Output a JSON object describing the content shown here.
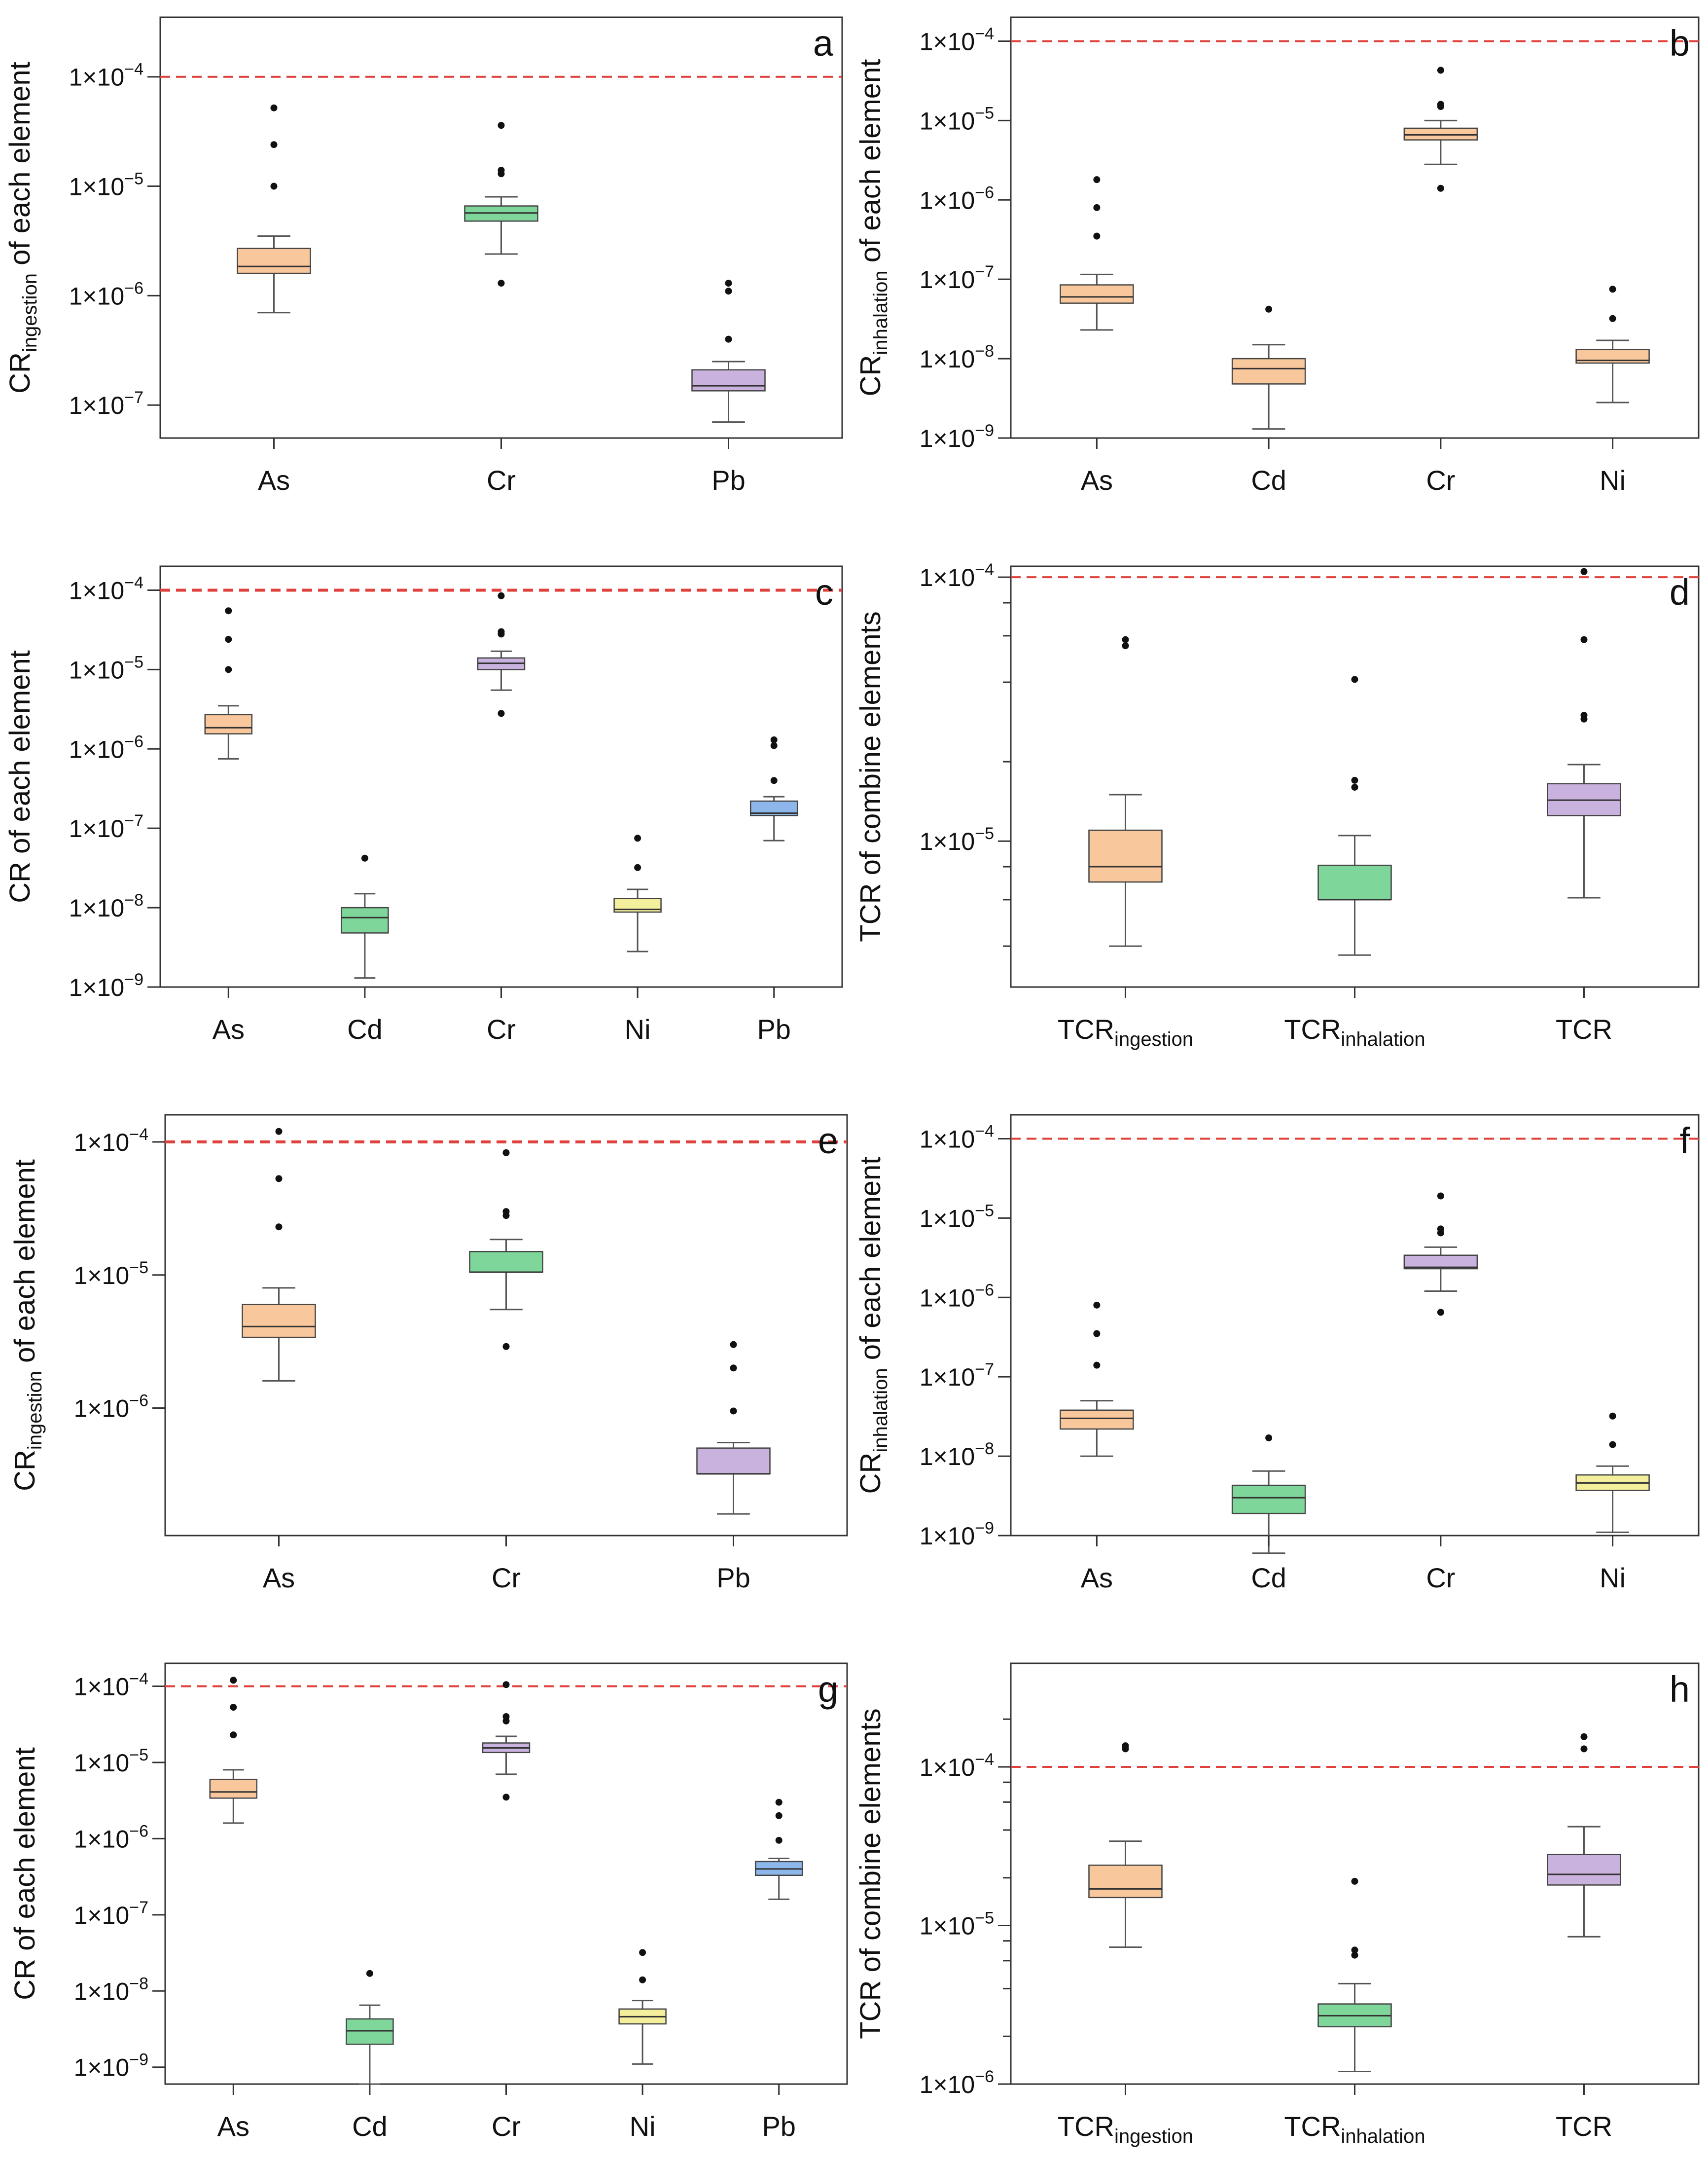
{
  "figure": {
    "panels": [
      "a",
      "b",
      "c",
      "d",
      "e",
      "f",
      "g",
      "h"
    ]
  },
  "colors": {
    "orange": "#F9C79C",
    "green": "#7FD69A",
    "purple": "#C9B3DE",
    "yellow": "#F4EF9C",
    "blue": "#8DB6EA",
    "threshold": "#E0413B"
  },
  "chart_data": [
    {
      "id": "a",
      "type": "boxplot",
      "scale": "log",
      "ylabel": {
        "main": "CR",
        "sub": "ingestion",
        "rest": " of each element"
      },
      "ylim": [
        5e-08,
        0.00035
      ],
      "yticks": [
        {
          "value": 1e-07,
          "label": "1×10",
          "exp": "−7"
        },
        {
          "value": 1e-06,
          "label": "1×10",
          "exp": "−6"
        },
        {
          "value": 1e-05,
          "label": "1×10",
          "exp": "−5"
        },
        {
          "value": 0.0001,
          "label": "1×10",
          "exp": "−4"
        }
      ],
      "threshold": 0.0001,
      "categories": [
        {
          "name": "As",
          "sub": "",
          "color": "orange",
          "min": 7e-07,
          "q1": 1.6e-06,
          "median": 1.85e-06,
          "q3": 2.7e-06,
          "max": 3.5e-06,
          "outliers": [
            1e-05,
            2.4e-05,
            5.2e-05
          ]
        },
        {
          "name": "Cr",
          "sub": "",
          "color": "green",
          "min": 2.4e-06,
          "q1": 4.8e-06,
          "median": 5.7e-06,
          "q3": 6.6e-06,
          "max": 8e-06,
          "outliers": [
            1.3e-06,
            1.3e-05,
            1.4e-05,
            3.6e-05
          ]
        },
        {
          "name": "Pb",
          "sub": "",
          "color": "purple",
          "min": 7e-08,
          "q1": 1.35e-07,
          "median": 1.5e-07,
          "q3": 2.1e-07,
          "max": 2.5e-07,
          "outliers": [
            4e-07,
            1.1e-06,
            1.3e-06
          ]
        }
      ]
    },
    {
      "id": "b",
      "type": "boxplot",
      "scale": "log",
      "ylabel": {
        "main": "CR",
        "sub": "inhalation",
        "rest": " of each element"
      },
      "ylim": [
        1e-09,
        0.0002
      ],
      "yticks": [
        {
          "value": 1e-09,
          "label": "1×10",
          "exp": "−9"
        },
        {
          "value": 1e-08,
          "label": "1×10",
          "exp": "−8"
        },
        {
          "value": 1e-07,
          "label": "1×10",
          "exp": "−7"
        },
        {
          "value": 1e-06,
          "label": "1×10",
          "exp": "−6"
        },
        {
          "value": 1e-05,
          "label": "1×10",
          "exp": "−5"
        },
        {
          "value": 0.0001,
          "label": "1×10",
          "exp": "−4"
        }
      ],
      "threshold": 0.0001,
      "categories": [
        {
          "name": "As",
          "sub": "",
          "color": "orange",
          "min": 2.3e-08,
          "q1": 5e-08,
          "median": 6e-08,
          "q3": 8.5e-08,
          "max": 1.15e-07,
          "outliers": [
            3.5e-07,
            8e-07,
            1.8e-06
          ]
        },
        {
          "name": "Cd",
          "sub": "",
          "color": "orange",
          "min": 1.3e-09,
          "q1": 4.8e-09,
          "median": 7.5e-09,
          "q3": 1e-08,
          "max": 1.5e-08,
          "outliers": [
            4.2e-08
          ]
        },
        {
          "name": "Cr",
          "sub": "",
          "color": "orange",
          "min": 2.8e-06,
          "q1": 5.7e-06,
          "median": 6.6e-06,
          "q3": 8e-06,
          "max": 1e-05,
          "outliers": [
            1.4e-06,
            1.5e-05,
            1.6e-05,
            4.3e-05
          ]
        },
        {
          "name": "Ni",
          "sub": "",
          "color": "orange",
          "min": 2.8e-09,
          "q1": 8.8e-09,
          "median": 9.5e-09,
          "q3": 1.3e-08,
          "max": 1.7e-08,
          "outliers": [
            3.2e-08,
            7.5e-08
          ]
        }
      ]
    },
    {
      "id": "c",
      "type": "boxplot",
      "scale": "log",
      "ylabel": {
        "main": "CR",
        "sub": "",
        "rest": " of each element"
      },
      "ylim": [
        1e-09,
        0.0002
      ],
      "yticks": [
        {
          "value": 1e-09,
          "label": "1×10",
          "exp": "−9"
        },
        {
          "value": 1e-08,
          "label": "1×10",
          "exp": "−8"
        },
        {
          "value": 1e-07,
          "label": "1×10",
          "exp": "−7"
        },
        {
          "value": 1e-06,
          "label": "1×10",
          "exp": "−6"
        },
        {
          "value": 1e-05,
          "label": "1×10",
          "exp": "−5"
        },
        {
          "value": 0.0001,
          "label": "1×10",
          "exp": "−4"
        }
      ],
      "threshold": 0.0001,
      "categories": [
        {
          "name": "As",
          "sub": "",
          "color": "orange",
          "min": 7.5e-07,
          "q1": 1.55e-06,
          "median": 1.85e-06,
          "q3": 2.7e-06,
          "max": 3.5e-06,
          "outliers": [
            1e-05,
            2.4e-05,
            5.5e-05
          ]
        },
        {
          "name": "Cd",
          "sub": "",
          "color": "green",
          "min": 1.3e-09,
          "q1": 4.8e-09,
          "median": 7.5e-09,
          "q3": 1e-08,
          "max": 1.5e-08,
          "outliers": [
            4.2e-08
          ]
        },
        {
          "name": "Cr",
          "sub": "",
          "color": "purple",
          "min": 5.5e-06,
          "q1": 1e-05,
          "median": 1.2e-05,
          "q3": 1.4e-05,
          "max": 1.7e-05,
          "outliers": [
            2.8e-06,
            2.8e-05,
            3e-05,
            8.5e-05
          ]
        },
        {
          "name": "Ni",
          "sub": "",
          "color": "yellow",
          "min": 2.8e-09,
          "q1": 8.8e-09,
          "median": 9.5e-09,
          "q3": 1.3e-08,
          "max": 1.7e-08,
          "outliers": [
            3.2e-08,
            7.5e-08
          ]
        },
        {
          "name": "Pb",
          "sub": "",
          "color": "blue",
          "min": 7e-08,
          "q1": 1.45e-07,
          "median": 1.55e-07,
          "q3": 2.2e-07,
          "max": 2.5e-07,
          "outliers": [
            4e-07,
            1.1e-06,
            1.3e-06
          ]
        }
      ]
    },
    {
      "id": "d",
      "type": "boxplot",
      "scale": "log",
      "ylabel": {
        "main": "TCR of combine elements",
        "sub": "",
        "rest": ""
      },
      "ylim": [
        2.8e-06,
        0.00011
      ],
      "yticks": [
        {
          "value": 1e-05,
          "label": "1×10",
          "exp": "−5"
        },
        {
          "value": 0.0001,
          "label": "1×10",
          "exp": "−4"
        }
      ],
      "minor_ticks": [
        4e-06,
        6e-06,
        8e-06,
        2e-05,
        4e-05,
        6e-05,
        8e-05
      ],
      "threshold": 0.0001,
      "categories": [
        {
          "name": "TCR",
          "sub": "ingestion",
          "color": "orange",
          "min": 4e-06,
          "q1": 7e-06,
          "median": 8e-06,
          "q3": 1.1e-05,
          "max": 1.5e-05,
          "outliers": [
            5.5e-05,
            5.8e-05
          ]
        },
        {
          "name": "TCR",
          "sub": "inhalation",
          "color": "green",
          "min": 3.7e-06,
          "q1": 6e-06,
          "median": 6e-06,
          "q3": 8.1e-06,
          "max": 1.05e-05,
          "outliers": [
            1.6e-05,
            1.7e-05,
            4.1e-05
          ]
        },
        {
          "name": "TCR",
          "sub": "",
          "color": "purple",
          "min": 6.1e-06,
          "q1": 1.25e-05,
          "median": 1.43e-05,
          "q3": 1.65e-05,
          "max": 1.95e-05,
          "outliers": [
            2.9e-05,
            3e-05,
            5.8e-05,
            0.000105
          ]
        }
      ]
    },
    {
      "id": "e",
      "type": "boxplot",
      "scale": "log",
      "ylabel": {
        "main": "CR",
        "sub": "ingestion",
        "rest": " of each element"
      },
      "ylim": [
        1.1e-07,
        0.00016
      ],
      "yticks": [
        {
          "value": 1e-06,
          "label": "1×10",
          "exp": "−6"
        },
        {
          "value": 1e-05,
          "label": "1×10",
          "exp": "−5"
        },
        {
          "value": 0.0001,
          "label": "1×10",
          "exp": "−4"
        }
      ],
      "threshold": 0.0001,
      "categories": [
        {
          "name": "As",
          "sub": "",
          "color": "orange",
          "min": 1.6e-06,
          "q1": 3.4e-06,
          "median": 4.1e-06,
          "q3": 6e-06,
          "max": 8e-06,
          "outliers": [
            2.3e-05,
            5.3e-05,
            0.00012
          ]
        },
        {
          "name": "Cr",
          "sub": "",
          "color": "green",
          "min": 5.5e-06,
          "q1": 1.05e-05,
          "median": 1.05e-05,
          "q3": 1.5e-05,
          "max": 1.85e-05,
          "outliers": [
            2.9e-06,
            2.8e-05,
            3e-05,
            8.3e-05
          ]
        },
        {
          "name": "Pb",
          "sub": "",
          "color": "purple",
          "min": 1.6e-07,
          "q1": 3.2e-07,
          "median": 3.2e-07,
          "q3": 5e-07,
          "max": 5.5e-07,
          "outliers": [
            9.5e-07,
            2e-06,
            3e-06
          ]
        }
      ]
    },
    {
      "id": "f",
      "type": "boxplot",
      "scale": "log",
      "ylabel": {
        "main": "CR",
        "sub": "inhalation",
        "rest": " of each element"
      },
      "ylim": [
        1e-09,
        0.0002
      ],
      "yticks": [
        {
          "value": 1e-09,
          "label": "1×10",
          "exp": "−9"
        },
        {
          "value": 1e-08,
          "label": "1×10",
          "exp": "−8"
        },
        {
          "value": 1e-07,
          "label": "1×10",
          "exp": "−7"
        },
        {
          "value": 1e-06,
          "label": "1×10",
          "exp": "−6"
        },
        {
          "value": 1e-05,
          "label": "1×10",
          "exp": "−5"
        },
        {
          "value": 0.0001,
          "label": "1×10",
          "exp": "−4"
        }
      ],
      "threshold": 0.0001,
      "categories": [
        {
          "name": "As",
          "sub": "",
          "color": "orange",
          "min": 1e-08,
          "q1": 2.2e-08,
          "median": 3e-08,
          "q3": 3.8e-08,
          "max": 5e-08,
          "outliers": [
            1.4e-07,
            3.5e-07,
            8e-07
          ]
        },
        {
          "name": "Cd",
          "sub": "",
          "color": "green",
          "min": 6e-10,
          "q1": 1.9e-09,
          "median": 3e-09,
          "q3": 4.3e-09,
          "max": 6.5e-09,
          "outliers": [
            1.7e-08
          ]
        },
        {
          "name": "Cr",
          "sub": "",
          "color": "purple",
          "min": 1.2e-06,
          "q1": 2.3e-06,
          "median": 2.4e-06,
          "q3": 3.4e-06,
          "max": 4.3e-06,
          "outliers": [
            6.5e-07,
            6.5e-06,
            7.3e-06,
            1.9e-05
          ]
        },
        {
          "name": "Ni",
          "sub": "",
          "color": "yellow",
          "min": 1.1e-09,
          "q1": 3.7e-09,
          "median": 4.6e-09,
          "q3": 5.8e-09,
          "max": 7.5e-09,
          "outliers": [
            1.4e-08,
            3.2e-08
          ]
        }
      ]
    },
    {
      "id": "g",
      "type": "boxplot",
      "scale": "log",
      "ylabel": {
        "main": "CR",
        "sub": "",
        "rest": " of each element"
      },
      "ylim": [
        6e-10,
        0.0002
      ],
      "yticks": [
        {
          "value": 1e-09,
          "label": "1×10",
          "exp": "−9"
        },
        {
          "value": 1e-08,
          "label": "1×10",
          "exp": "−8"
        },
        {
          "value": 1e-07,
          "label": "1×10",
          "exp": "−7"
        },
        {
          "value": 1e-06,
          "label": "1×10",
          "exp": "−6"
        },
        {
          "value": 1e-05,
          "label": "1×10",
          "exp": "−5"
        },
        {
          "value": 0.0001,
          "label": "1×10",
          "exp": "−4"
        }
      ],
      "threshold": 0.0001,
      "categories": [
        {
          "name": "As",
          "sub": "",
          "color": "orange",
          "min": 1.6e-06,
          "q1": 3.4e-06,
          "median": 4.1e-06,
          "q3": 6e-06,
          "max": 8e-06,
          "outliers": [
            2.3e-05,
            5.3e-05,
            0.00012
          ]
        },
        {
          "name": "Cd",
          "sub": "",
          "color": "green",
          "min": 6e-10,
          "q1": 2e-09,
          "median": 3e-09,
          "q3": 4.3e-09,
          "max": 6.5e-09,
          "outliers": [
            1.7e-08
          ]
        },
        {
          "name": "Cr",
          "sub": "",
          "color": "purple",
          "min": 7e-06,
          "q1": 1.35e-05,
          "median": 1.55e-05,
          "q3": 1.8e-05,
          "max": 2.2e-05,
          "outliers": [
            3.5e-06,
            3.5e-05,
            4e-05,
            0.000105
          ]
        },
        {
          "name": "Ni",
          "sub": "",
          "color": "yellow",
          "min": 1.1e-09,
          "q1": 3.7e-09,
          "median": 4.6e-09,
          "q3": 5.8e-09,
          "max": 7.5e-09,
          "outliers": [
            1.4e-08,
            3.2e-08
          ]
        },
        {
          "name": "Pb",
          "sub": "",
          "color": "blue",
          "min": 1.6e-07,
          "q1": 3.3e-07,
          "median": 4e-07,
          "q3": 5e-07,
          "max": 5.5e-07,
          "outliers": [
            9.5e-07,
            2e-06,
            3e-06
          ]
        }
      ]
    },
    {
      "id": "h",
      "type": "boxplot",
      "scale": "log",
      "ylabel": {
        "main": "TCR of combine elements",
        "sub": "",
        "rest": ""
      },
      "ylim": [
        1e-06,
        0.00045
      ],
      "yticks": [
        {
          "value": 1e-06,
          "label": "1×10",
          "exp": "−6"
        },
        {
          "value": 1e-05,
          "label": "1×10",
          "exp": "−5"
        },
        {
          "value": 0.0001,
          "label": "1×10",
          "exp": "−4"
        }
      ],
      "minor_ticks": [
        2e-06,
        4e-06,
        6e-06,
        8e-06,
        2e-05,
        4e-05,
        6e-05,
        8e-05,
        0.0002
      ],
      "threshold": 0.0001,
      "categories": [
        {
          "name": "TCR",
          "sub": "ingestion",
          "color": "orange",
          "min": 7.3e-06,
          "q1": 1.5e-05,
          "median": 1.7e-05,
          "q3": 2.4e-05,
          "max": 3.4e-05,
          "outliers": [
            0.00013,
            0.000136
          ]
        },
        {
          "name": "TCR",
          "sub": "inhalation",
          "color": "green",
          "min": 1.2e-06,
          "q1": 2.3e-06,
          "median": 2.7e-06,
          "q3": 3.2e-06,
          "max": 4.3e-06,
          "outliers": [
            6.5e-06,
            7e-06,
            1.9e-05
          ]
        },
        {
          "name": "TCR",
          "sub": "",
          "color": "purple",
          "min": 8.5e-06,
          "q1": 1.8e-05,
          "median": 2.1e-05,
          "q3": 2.8e-05,
          "max": 4.2e-05,
          "outliers": [
            0.00013,
            0.000155
          ]
        }
      ]
    }
  ]
}
